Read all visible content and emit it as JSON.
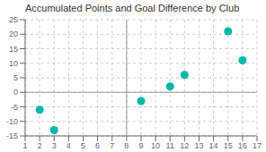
{
  "chart_data": {
    "type": "scatter",
    "title": "Accumulated Points and Goal Difference by Club",
    "x": [
      2,
      3,
      9,
      11,
      12,
      15,
      16
    ],
    "values": [
      -6,
      -13,
      -3,
      2,
      6,
      21,
      11
    ],
    "color": "#00B8A9",
    "xlim": [
      1,
      17
    ],
    "ylim": [
      -15,
      25
    ],
    "xticks": [
      1,
      2,
      3,
      4,
      5,
      6,
      7,
      8,
      9,
      10,
      11,
      12,
      13,
      14,
      15,
      16,
      17
    ],
    "yticks": [
      -15,
      -10,
      -5,
      0,
      5,
      10,
      15,
      20,
      25
    ],
    "grid": true,
    "quadrant_x": 8,
    "quadrant_y": 0
  }
}
